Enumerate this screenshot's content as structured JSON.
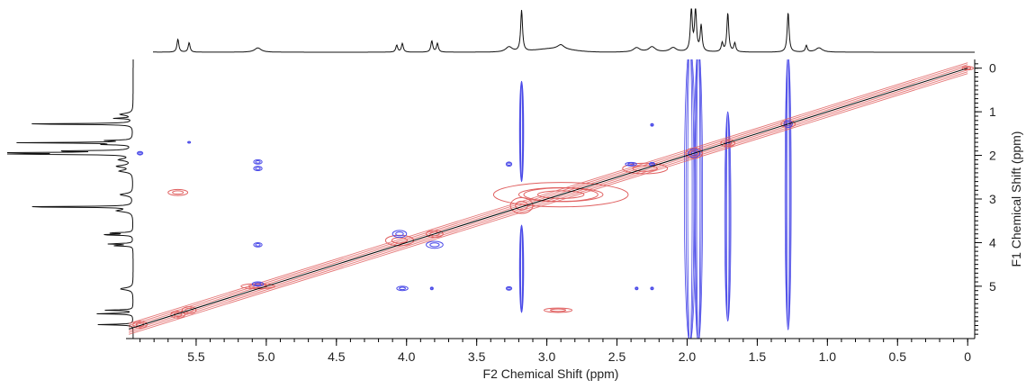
{
  "chart_data": {
    "type": "heatmap",
    "title": "",
    "xlabel": "F2 Chemical Shift (ppm)",
    "ylabel": "F1 Chemical Shift (ppm)",
    "xlim": [
      6.0,
      -0.05
    ],
    "ylim": [
      -0.2,
      6.2
    ],
    "x_ticks": [
      "5.5",
      "5.0",
      "4.5",
      "4.0",
      "3.5",
      "3.0",
      "2.5",
      "2.0",
      "1.5",
      "1.0",
      "0.5",
      "0"
    ],
    "x_tick_values": [
      5.5,
      5.0,
      4.5,
      4.0,
      3.5,
      3.0,
      2.5,
      2.0,
      1.5,
      1.0,
      0.5,
      0.0
    ],
    "y_ticks": [
      "0",
      "1",
      "2",
      "3",
      "4",
      "5"
    ],
    "y_tick_values": [
      0,
      1,
      2,
      3,
      4,
      5
    ],
    "grid": false,
    "colors": {
      "positive_contours": "#e06060",
      "negative_contours": "#4a4ae8",
      "projection": "#111111",
      "diagonal": "#000000"
    },
    "projection_peaks": [
      {
        "ppm": 5.88,
        "height": 0.28
      },
      {
        "ppm": 5.63,
        "height": 0.3
      },
      {
        "ppm": 5.55,
        "height": 0.22
      },
      {
        "ppm": 5.06,
        "height": 0.1
      },
      {
        "ppm": 4.07,
        "height": 0.16
      },
      {
        "ppm": 4.03,
        "height": 0.2
      },
      {
        "ppm": 3.82,
        "height": 0.26
      },
      {
        "ppm": 3.78,
        "height": 0.2
      },
      {
        "ppm": 3.27,
        "height": 0.12
      },
      {
        "ppm": 3.18,
        "height": 0.95
      },
      {
        "ppm": 2.9,
        "height": 0.1
      },
      {
        "ppm": 2.36,
        "height": 0.1
      },
      {
        "ppm": 2.25,
        "height": 0.12
      },
      {
        "ppm": 2.1,
        "height": 0.1
      },
      {
        "ppm": 1.97,
        "height": 1.0
      },
      {
        "ppm": 1.94,
        "height": 1.0
      },
      {
        "ppm": 1.9,
        "height": 0.6
      },
      {
        "ppm": 1.75,
        "height": 0.2
      },
      {
        "ppm": 1.71,
        "height": 0.9
      },
      {
        "ppm": 1.66,
        "height": 0.2
      },
      {
        "ppm": 1.28,
        "height": 0.92
      },
      {
        "ppm": 1.15,
        "height": 0.15
      },
      {
        "ppm": 1.06,
        "height": 0.1
      }
    ],
    "diagonal": {
      "from": [
        5.98,
        5.98
      ],
      "to": [
        0.0,
        0.0
      ]
    },
    "positive_peaks": [
      {
        "f2": 5.9,
        "f1": 5.88,
        "w": 0.05,
        "h": 0.08
      },
      {
        "f2": 5.63,
        "f1": 5.65,
        "w": 0.05,
        "h": 0.08
      },
      {
        "f2": 5.55,
        "f1": 5.55,
        "w": 0.05,
        "h": 0.08
      },
      {
        "f2": 5.63,
        "f1": 2.85,
        "w": 0.07,
        "h": 0.07
      },
      {
        "f2": 5.06,
        "f1": 5.0,
        "w": 0.12,
        "h": 0.06
      },
      {
        "f2": 4.05,
        "f1": 3.95,
        "w": 0.1,
        "h": 0.12
      },
      {
        "f2": 3.8,
        "f1": 3.8,
        "w": 0.06,
        "h": 0.08
      },
      {
        "f2": 3.18,
        "f1": 3.15,
        "w": 0.08,
        "h": 0.18
      },
      {
        "f2": 2.9,
        "f1": 2.9,
        "w": 0.48,
        "h": 0.28
      },
      {
        "f2": 2.9,
        "f1": 2.9,
        "w": 0.3,
        "h": 0.16
      },
      {
        "f2": 2.92,
        "f1": 5.55,
        "w": 0.1,
        "h": 0.05
      },
      {
        "f2": 2.3,
        "f1": 2.3,
        "w": 0.16,
        "h": 0.12
      },
      {
        "f2": 1.95,
        "f1": 1.95,
        "w": 0.06,
        "h": 0.12
      },
      {
        "f2": 1.71,
        "f1": 1.72,
        "w": 0.05,
        "h": 0.08
      },
      {
        "f2": 1.28,
        "f1": 1.28,
        "w": 0.05,
        "h": 0.08
      },
      {
        "f2": 0.0,
        "f1": 0.0,
        "w": 0.04,
        "h": 0.04
      }
    ],
    "negative_peaks": [
      {
        "f2": 5.9,
        "f1": 1.95,
        "w": 0.02,
        "h": 0.04
      },
      {
        "f2": 5.55,
        "f1": 1.7,
        "w": 0.01,
        "h": 0.02
      },
      {
        "f2": 5.06,
        "f1": 2.15,
        "w": 0.03,
        "h": 0.05
      },
      {
        "f2": 5.06,
        "f1": 2.3,
        "w": 0.03,
        "h": 0.05
      },
      {
        "f2": 5.06,
        "f1": 4.05,
        "w": 0.03,
        "h": 0.05
      },
      {
        "f2": 5.06,
        "f1": 4.95,
        "w": 0.04,
        "h": 0.05
      },
      {
        "f2": 4.03,
        "f1": 5.05,
        "w": 0.04,
        "h": 0.05
      },
      {
        "f2": 4.05,
        "f1": 3.8,
        "w": 0.05,
        "h": 0.08
      },
      {
        "f2": 3.8,
        "f1": 4.05,
        "w": 0.06,
        "h": 0.08
      },
      {
        "f2": 3.82,
        "f1": 5.05,
        "w": 0.01,
        "h": 0.03
      },
      {
        "f2": 3.27,
        "f1": 2.2,
        "w": 0.02,
        "h": 0.05
      },
      {
        "f2": 3.27,
        "f1": 5.05,
        "w": 0.02,
        "h": 0.04
      },
      {
        "f2": 2.4,
        "f1": 2.2,
        "w": 0.04,
        "h": 0.04
      },
      {
        "f2": 2.36,
        "f1": 5.05,
        "w": 0.01,
        "h": 0.03
      },
      {
        "f2": 2.25,
        "f1": 1.3,
        "w": 0.01,
        "h": 0.03
      },
      {
        "f2": 2.25,
        "f1": 2.2,
        "w": 0.02,
        "h": 0.04
      },
      {
        "f2": 2.25,
        "f1": 5.05,
        "w": 0.01,
        "h": 0.03
      },
      {
        "f2": 1.95,
        "f1": 1.95,
        "w": 0.04,
        "h": 0.1
      },
      {
        "f2": 1.28,
        "f1": 1.28,
        "w": 0.03,
        "h": 0.08
      }
    ],
    "negative_streaks": [
      {
        "f2": 3.18,
        "f1_from": 0.3,
        "f1_to": 2.6,
        "w": 0.015
      },
      {
        "f2": 3.18,
        "f1_from": 3.6,
        "f1_to": 5.6,
        "w": 0.015
      },
      {
        "f2": 1.98,
        "f1_from": -0.5,
        "f1_to": 6.3,
        "w": 0.04
      },
      {
        "f2": 1.92,
        "f1_from": -0.5,
        "f1_to": 6.3,
        "w": 0.03
      },
      {
        "f2": 1.71,
        "f1_from": 1.0,
        "f1_to": 5.8,
        "w": 0.022
      },
      {
        "f2": 1.28,
        "f1_from": -0.3,
        "f1_to": 6.0,
        "w": 0.022
      }
    ]
  }
}
